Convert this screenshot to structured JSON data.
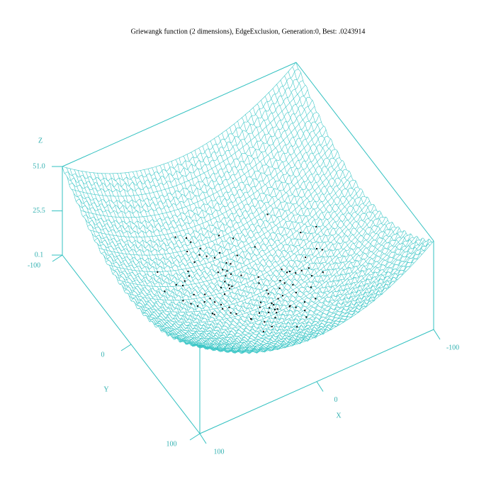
{
  "chart_data": {
    "type": "surface3d",
    "title": "Griewangk function (2 dimensions), EdgeExclusion, Generation:0, Best: .0243914",
    "x_label": "X",
    "y_label": "Y",
    "z_label": "Z",
    "xlim": [
      -100,
      100
    ],
    "ylim": [
      -100,
      100
    ],
    "zlim": [
      0.1,
      51
    ],
    "xticks": [
      -100,
      0,
      100
    ],
    "yticks": [
      -100,
      0,
      100
    ],
    "zticks": [
      0.1,
      25.5,
      {
        "value": 51,
        "label": "51.0"
      }
    ],
    "color": "#40c8c8",
    "points": {
      "color": "#000000",
      "x": [
        -12,
        5,
        23,
        -34,
        8,
        -3,
        41,
        -19,
        15,
        -7,
        30,
        -45,
        2,
        -25,
        11,
        -60,
        19,
        -9,
        36,
        -15,
        4,
        27,
        -38,
        13,
        -2,
        52,
        -21,
        7,
        -31,
        16,
        -5,
        44,
        -11,
        25,
        -48,
        1,
        33,
        -17,
        9,
        -27,
        63,
        -6,
        18,
        -40,
        12,
        -1,
        29,
        -55,
        6,
        -23,
        38,
        -13,
        21,
        -8,
        47,
        -29,
        3,
        -36,
        14,
        -4,
        26,
        -50,
        10,
        -18,
        35,
        -10,
        20,
        -42,
        0,
        31,
        -14,
        58,
        -26,
        8,
        -33,
        17,
        -6,
        40,
        -20,
        24,
        -57,
        5,
        -3,
        28,
        -44,
        11,
        -16,
        49,
        -24,
        15,
        -1,
        37,
        -30,
        7,
        -12,
        22,
        -66,
        13,
        -9,
        43
      ],
      "y": [
        7,
        -22,
        14,
        3,
        -35,
        26,
        -9,
        18,
        -44,
        31,
        -4,
        12,
        -28,
        40,
        -15,
        6,
        -51,
        22,
        -2,
        35,
        -18,
        9,
        27,
        -38,
        15,
        -6,
        47,
        -25,
        4,
        -12,
        33,
        -20,
        11,
        -46,
        2,
        19,
        -31,
        56,
        -8,
        24,
        -14,
        29,
        -40,
        10,
        -23,
        38,
        1,
        -17,
        45,
        -29,
        13,
        -7,
        -54,
        21,
        -3,
        16,
        -36,
        8,
        28,
        -49,
        5,
        24,
        -11,
        39,
        -26,
        -1,
        17,
        -43,
        30,
        -10,
        20,
        -33,
        9,
        -19,
        42,
        -5,
        61,
        -24,
        12,
        -37,
        3,
        25,
        -15,
        -58,
        18,
        -8,
        34,
        -21,
        6,
        48,
        -27,
        14,
        -2,
        36,
        -42,
        10,
        -13,
        27,
        -31,
        0
      ]
    }
  }
}
